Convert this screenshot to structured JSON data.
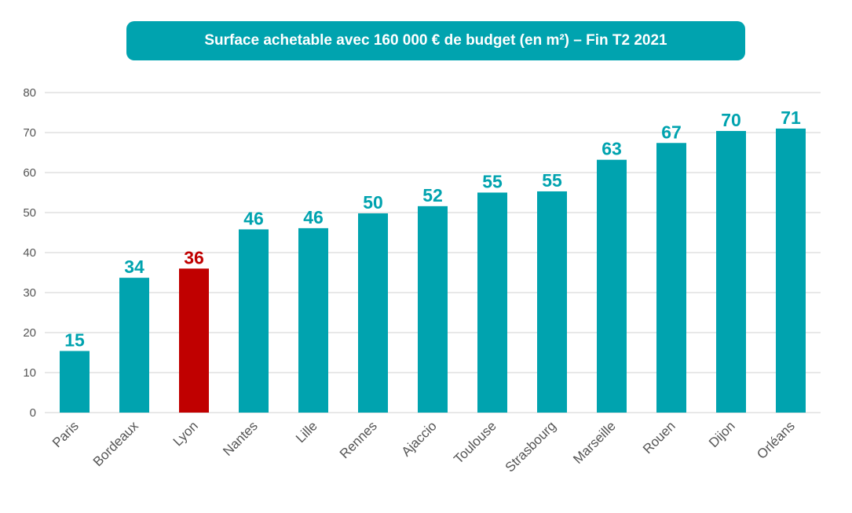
{
  "chart_data": {
    "type": "bar",
    "title": "Surface achetable avec 160 000 € de budget (en m²) – Fin T2 2021",
    "categories": [
      "Paris",
      "Bordeaux",
      "Lyon",
      "Nantes",
      "Lille",
      "Rennes",
      "Ajaccio",
      "Toulouse",
      "Strasbourg",
      "Marseille",
      "Rouen",
      "Dijon",
      "Orléans"
    ],
    "values": [
      15.4,
      33.7,
      36,
      45.8,
      46.1,
      49.8,
      51.6,
      55,
      55.3,
      63.2,
      67.4,
      70.4,
      71
    ],
    "data_labels": [
      "15",
      "34",
      "36",
      "46",
      "46",
      "50",
      "52",
      "55",
      "55",
      "63",
      "67",
      "70",
      "71"
    ],
    "highlight_category": "Lyon",
    "ylim": [
      0,
      80
    ],
    "yticks": [
      0,
      10,
      20,
      30,
      40,
      50,
      60,
      70,
      80
    ],
    "xlabel": "",
    "ylabel": "",
    "grid": true,
    "legend": "none",
    "colors": {
      "bar": "#00A3AF",
      "highlight": "#C00000",
      "title_bg": "#00A3AF",
      "title_text": "#FFFFFF",
      "grid": "#D9D9D9",
      "axis_text": "#555555"
    }
  }
}
